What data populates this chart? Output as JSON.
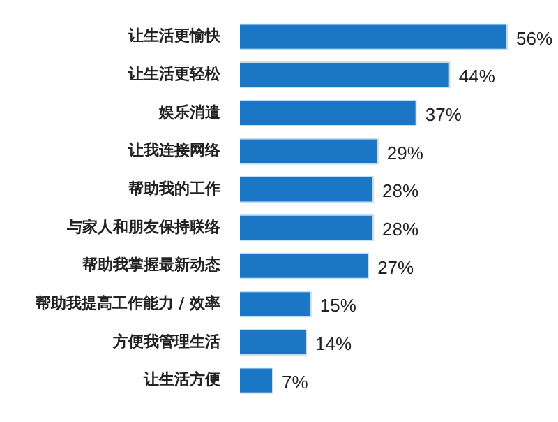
{
  "chart_data": {
    "type": "bar",
    "orientation": "horizontal",
    "categories": [
      "让生活更愉快",
      "让生活更轻松",
      "娱乐消遣",
      "让我连接网络",
      "帮助我的工作",
      "与家人和朋友保持联络",
      "帮助我掌握最新动态",
      "帮助我提高工作能力 / 效率",
      "方便我管理生活",
      "让生活方便"
    ],
    "values": [
      56,
      44,
      37,
      29,
      28,
      28,
      27,
      15,
      14,
      7
    ],
    "value_labels": [
      "56%",
      "44%",
      "37%",
      "29%",
      "28%",
      "28%",
      "27%",
      "15%",
      "14%",
      "7%"
    ],
    "color": "#1b76c6"
  }
}
